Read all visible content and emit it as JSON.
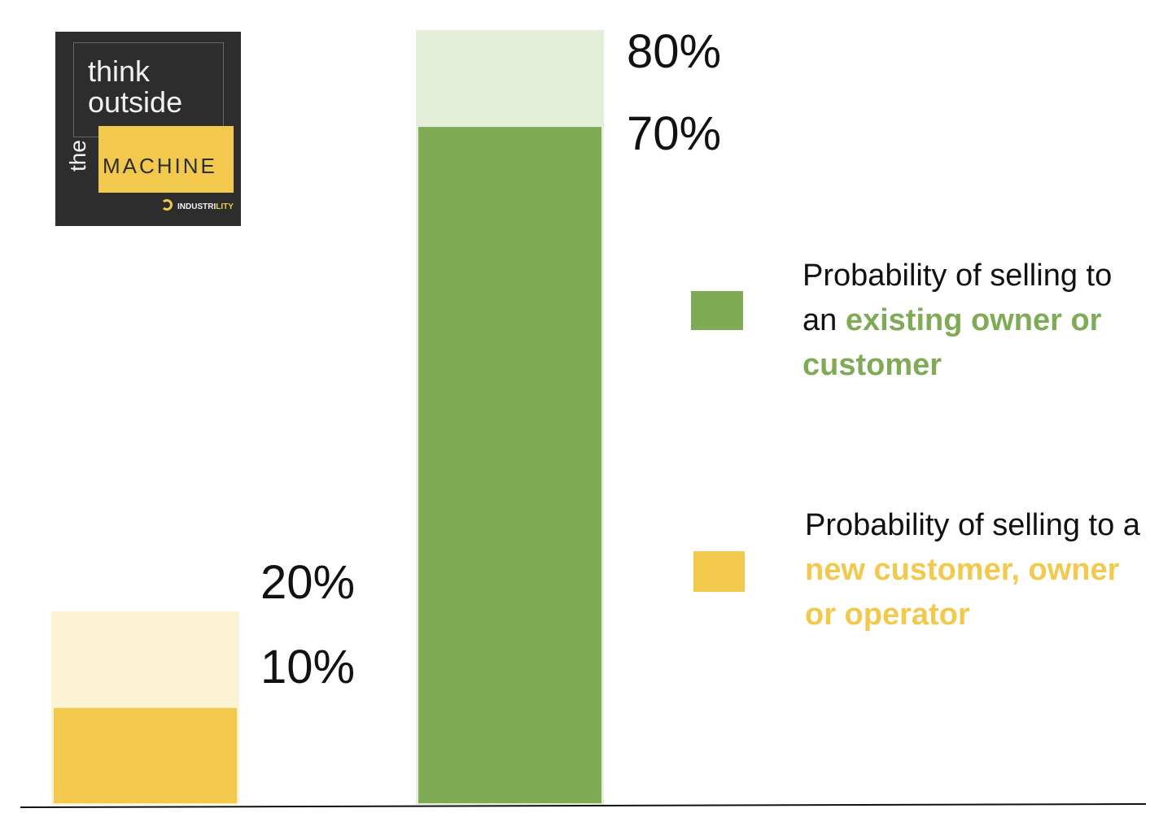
{
  "chart_data": {
    "type": "bar",
    "title": "",
    "xlabel": "",
    "ylabel": "",
    "ylim": [
      0,
      80
    ],
    "grid": false,
    "legend_placement": "right",
    "categories": [
      "new customer, owner or operator",
      "existing owner or customer"
    ],
    "bars": [
      {
        "name": "new",
        "value": 10,
        "upper": 20,
        "value_label": "10%",
        "upper_label": "20%",
        "color": "#f2c94c",
        "light_color": "#fcf2d4"
      },
      {
        "name": "existing",
        "value": 70,
        "upper": 80,
        "value_label": "70%",
        "upper_label": "80%",
        "color": "#80ab56",
        "light_color": "#e3efd9"
      }
    ],
    "legend": [
      {
        "text_plain": "Probability of selling to an",
        "text_highlight": "existing owner or customer",
        "color": "#80ab56"
      },
      {
        "text_plain": "Probability of selling to a",
        "text_highlight": "new customer, owner or operator",
        "color": "#f2c94c"
      }
    ]
  },
  "logo": {
    "line1": "think",
    "line2": "outside",
    "the": "the",
    "machine": "MACHINE",
    "brand_a": "INDUSTRI",
    "brand_b": "LITY",
    "icon": "industrility-logo-icon"
  },
  "colors": {
    "green": "#80ab56",
    "yellow": "#f2c94c",
    "axis": "#111111"
  }
}
